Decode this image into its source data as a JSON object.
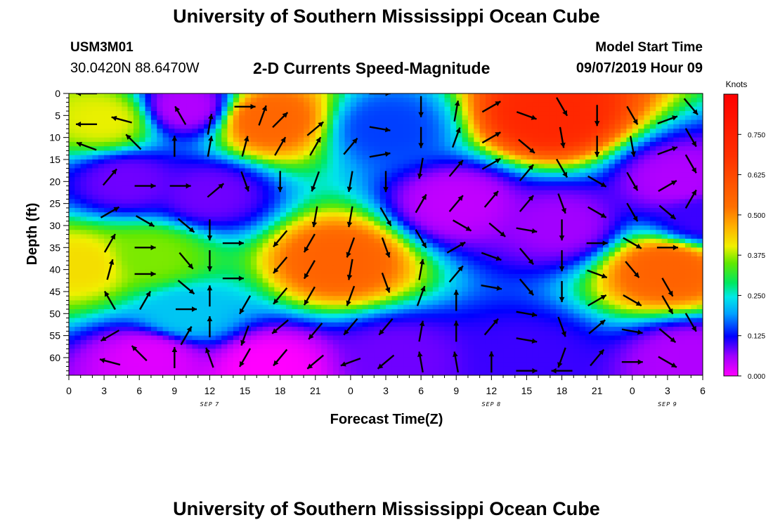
{
  "page": {
    "title_top": "University of Southern Mississippi Ocean Cube",
    "title_bottom": "University of Southern Mississippi Ocean Cube",
    "station_id": "USM3M01",
    "station_coords": "30.0420N 88.6470W",
    "plot_title": "2-D Currents Speed-Magnitude",
    "start_time_label": "Model Start Time",
    "start_time_value": "09/07/2019 Hour 09"
  },
  "chart_data": {
    "type": "heatmap",
    "title": "2-D Currents Speed-Magnitude",
    "xlabel": "Forecast Time(Z)",
    "ylabel": "Depth (ft)",
    "x_range_hours": [
      0,
      54
    ],
    "y_range_ft": [
      0,
      64
    ],
    "y_inverted": true,
    "x_tick_labels": [
      "0",
      "3",
      "6",
      "9",
      "12",
      "15",
      "18",
      "21",
      "0",
      "3",
      "6",
      "9",
      "12",
      "15",
      "18",
      "21",
      "0",
      "3",
      "6"
    ],
    "y_tick_labels": [
      "0",
      "5",
      "10",
      "15",
      "20",
      "25",
      "30",
      "35",
      "40",
      "45",
      "50",
      "55",
      "60"
    ],
    "date_labels": [
      {
        "text": "SEP 7",
        "at_hour": 12
      },
      {
        "text": "SEP 8",
        "at_hour": 36
      },
      {
        "text": "SEP 9",
        "at_hour": 51
      }
    ],
    "colorbar": {
      "unit": "Knots",
      "min": 0.0,
      "max": 0.875,
      "tick_labels": [
        "0.000",
        "0.125",
        "0.250",
        "0.375",
        "0.500",
        "0.625",
        "0.750"
      ]
    },
    "speed_centers": [
      {
        "t": 3,
        "d": 6,
        "v": 0.4
      },
      {
        "t": 1,
        "d": 39,
        "v": 0.42
      },
      {
        "t": 7,
        "d": 37,
        "v": 0.36
      },
      {
        "t": 17,
        "d": 6,
        "v": 0.55
      },
      {
        "t": 23,
        "d": 38,
        "v": 0.56
      },
      {
        "t": 17,
        "d": 62,
        "v": 0.0
      },
      {
        "t": 41,
        "d": 5,
        "v": 0.72
      },
      {
        "t": 51,
        "d": 40,
        "v": 0.56
      },
      {
        "t": 7,
        "d": 60,
        "v": 0.02
      },
      {
        "t": 12,
        "d": 23,
        "v": 0.08
      },
      {
        "t": 5,
        "d": 20,
        "v": 0.08
      },
      {
        "t": 33,
        "d": 25,
        "v": 0.04
      },
      {
        "t": 42,
        "d": 30,
        "v": 0.06
      },
      {
        "t": 54,
        "d": 28,
        "v": 0.1
      },
      {
        "t": 52,
        "d": 20,
        "v": 0.05
      },
      {
        "t": 27,
        "d": 8,
        "v": 0.15
      },
      {
        "t": 28,
        "d": 60,
        "v": 0.08
      },
      {
        "t": 39,
        "d": 60,
        "v": 0.1
      },
      {
        "t": 53,
        "d": 60,
        "v": 0.05
      },
      {
        "t": 10,
        "d": 3,
        "v": 0.05
      },
      {
        "t": 10,
        "d": 50,
        "v": 0.22
      }
    ],
    "vectors": [
      {
        "t": 1.5,
        "d": 0,
        "angle": 180
      },
      {
        "t": 1.5,
        "d": 7,
        "angle": 180
      },
      {
        "t": 1.5,
        "d": 12,
        "angle": 160
      },
      {
        "t": 4.5,
        "d": 6,
        "angle": 165
      },
      {
        "t": 5.5,
        "d": 11,
        "angle": 135
      },
      {
        "t": 3.5,
        "d": 19,
        "angle": 50
      },
      {
        "t": 3.5,
        "d": 27,
        "angle": 30
      },
      {
        "t": 3.5,
        "d": 34,
        "angle": 60
      },
      {
        "t": 3.5,
        "d": 40,
        "angle": 75
      },
      {
        "t": 3.5,
        "d": 47,
        "angle": 120
      },
      {
        "t": 3.5,
        "d": 55,
        "angle": -150
      },
      {
        "t": 3.5,
        "d": 61,
        "angle": 165
      },
      {
        "t": 6.5,
        "d": 21,
        "angle": 0
      },
      {
        "t": 6.5,
        "d": 29,
        "angle": -30
      },
      {
        "t": 6.5,
        "d": 35,
        "angle": 0
      },
      {
        "t": 6.5,
        "d": 41,
        "angle": 0
      },
      {
        "t": 6.5,
        "d": 47,
        "angle": 60
      },
      {
        "t": 6.0,
        "d": 59,
        "angle": 135
      },
      {
        "t": 9.5,
        "d": 5,
        "angle": 120
      },
      {
        "t": 9.0,
        "d": 12,
        "angle": 90
      },
      {
        "t": 9.5,
        "d": 21,
        "angle": 0
      },
      {
        "t": 10.0,
        "d": 30,
        "angle": -40
      },
      {
        "t": 10.0,
        "d": 38,
        "angle": -50
      },
      {
        "t": 10.0,
        "d": 44,
        "angle": -40
      },
      {
        "t": 10.0,
        "d": 49,
        "angle": 0
      },
      {
        "t": 10.0,
        "d": 55,
        "angle": 60
      },
      {
        "t": 9.0,
        "d": 60,
        "angle": 90
      },
      {
        "t": 12.0,
        "d": 7,
        "angle": 80
      },
      {
        "t": 12.0,
        "d": 12,
        "angle": 80
      },
      {
        "t": 12.5,
        "d": 22,
        "angle": 40
      },
      {
        "t": 12.0,
        "d": 31,
        "angle": -90
      },
      {
        "t": 12.0,
        "d": 38,
        "angle": -90
      },
      {
        "t": 12.0,
        "d": 46,
        "angle": 90
      },
      {
        "t": 12.0,
        "d": 53,
        "angle": 90
      },
      {
        "t": 12.0,
        "d": 60,
        "angle": 110
      },
      {
        "t": 15.0,
        "d": 3,
        "angle": 0
      },
      {
        "t": 15.0,
        "d": 12,
        "angle": 75
      },
      {
        "t": 15.0,
        "d": 20,
        "angle": -70
      },
      {
        "t": 14.0,
        "d": 34,
        "angle": 0
      },
      {
        "t": 14.0,
        "d": 42,
        "angle": 0
      },
      {
        "t": 15.0,
        "d": 48,
        "angle": -120
      },
      {
        "t": 15.0,
        "d": 55,
        "angle": -110
      },
      {
        "t": 15.0,
        "d": 60,
        "angle": -120
      },
      {
        "t": 16.5,
        "d": 5,
        "angle": 70
      },
      {
        "t": 18.0,
        "d": 6,
        "angle": 45
      },
      {
        "t": 18.0,
        "d": 12,
        "angle": 60
      },
      {
        "t": 18.0,
        "d": 20,
        "angle": -90
      },
      {
        "t": 18.0,
        "d": 33,
        "angle": -130
      },
      {
        "t": 18.0,
        "d": 39,
        "angle": -130
      },
      {
        "t": 18.0,
        "d": 46,
        "angle": -130
      },
      {
        "t": 18.0,
        "d": 53,
        "angle": -140
      },
      {
        "t": 18.0,
        "d": 60,
        "angle": -130
      },
      {
        "t": 21.0,
        "d": 8,
        "angle": 40
      },
      {
        "t": 21.0,
        "d": 12,
        "angle": 60
      },
      {
        "t": 21.0,
        "d": 20,
        "angle": -110
      },
      {
        "t": 21.0,
        "d": 28,
        "angle": -100
      },
      {
        "t": 20.5,
        "d": 34,
        "angle": -120
      },
      {
        "t": 20.5,
        "d": 40,
        "angle": -120
      },
      {
        "t": 20.5,
        "d": 46,
        "angle": -120
      },
      {
        "t": 21.0,
        "d": 54,
        "angle": -130
      },
      {
        "t": 21.0,
        "d": 61,
        "angle": -140
      },
      {
        "t": 24.0,
        "d": 12,
        "angle": 50
      },
      {
        "t": 24.0,
        "d": 20,
        "angle": -100
      },
      {
        "t": 24.0,
        "d": 28,
        "angle": -100
      },
      {
        "t": 24.0,
        "d": 35,
        "angle": -110
      },
      {
        "t": 24.0,
        "d": 40,
        "angle": -100
      },
      {
        "t": 24.0,
        "d": 46,
        "angle": -110
      },
      {
        "t": 24.0,
        "d": 53,
        "angle": -130
      },
      {
        "t": 24.0,
        "d": 61,
        "angle": -160
      },
      {
        "t": 26.5,
        "d": 0,
        "angle": 0
      },
      {
        "t": 26.5,
        "d": 8,
        "angle": -10
      },
      {
        "t": 26.5,
        "d": 14,
        "angle": 10
      },
      {
        "t": 27.0,
        "d": 20,
        "angle": -90
      },
      {
        "t": 27.0,
        "d": 28,
        "angle": -60
      },
      {
        "t": 27.0,
        "d": 35,
        "angle": -70
      },
      {
        "t": 27.0,
        "d": 43,
        "angle": -70
      },
      {
        "t": 27.0,
        "d": 53,
        "angle": -130
      },
      {
        "t": 27.0,
        "d": 61,
        "angle": -140
      },
      {
        "t": 30.0,
        "d": 3,
        "angle": -90
      },
      {
        "t": 30.0,
        "d": 10,
        "angle": -90
      },
      {
        "t": 30.0,
        "d": 17,
        "angle": -100
      },
      {
        "t": 30.0,
        "d": 25,
        "angle": 60
      },
      {
        "t": 30.0,
        "d": 33,
        "angle": -60
      },
      {
        "t": 30.0,
        "d": 40,
        "angle": 80
      },
      {
        "t": 30.0,
        "d": 46,
        "angle": 70
      },
      {
        "t": 30.0,
        "d": 54,
        "angle": 80
      },
      {
        "t": 30.0,
        "d": 61,
        "angle": 100
      },
      {
        "t": 33.0,
        "d": 4,
        "angle": 80
      },
      {
        "t": 33.0,
        "d": 10,
        "angle": 70
      },
      {
        "t": 33.0,
        "d": 17,
        "angle": 50
      },
      {
        "t": 33.0,
        "d": 25,
        "angle": 50
      },
      {
        "t": 33.5,
        "d": 30,
        "angle": -30
      },
      {
        "t": 33.0,
        "d": 35,
        "angle": 30
      },
      {
        "t": 33.0,
        "d": 41,
        "angle": 50
      },
      {
        "t": 33.0,
        "d": 47,
        "angle": 90
      },
      {
        "t": 33.0,
        "d": 54,
        "angle": 90
      },
      {
        "t": 33.0,
        "d": 61,
        "angle": 100
      },
      {
        "t": 36.0,
        "d": 3,
        "angle": 30
      },
      {
        "t": 36.0,
        "d": 10,
        "angle": 30
      },
      {
        "t": 36.0,
        "d": 16,
        "angle": 30
      },
      {
        "t": 36.0,
        "d": 24,
        "angle": 50
      },
      {
        "t": 36.5,
        "d": 31,
        "angle": -40
      },
      {
        "t": 36.0,
        "d": 37,
        "angle": -20
      },
      {
        "t": 36.0,
        "d": 44,
        "angle": -10
      },
      {
        "t": 36.0,
        "d": 53,
        "angle": 50
      },
      {
        "t": 36.0,
        "d": 61,
        "angle": 90
      },
      {
        "t": 39.0,
        "d": 5,
        "angle": -20
      },
      {
        "t": 39.0,
        "d": 12,
        "angle": -40
      },
      {
        "t": 39.0,
        "d": 18,
        "angle": 50
      },
      {
        "t": 39.0,
        "d": 25,
        "angle": 50
      },
      {
        "t": 39.0,
        "d": 31,
        "angle": -10
      },
      {
        "t": 39.0,
        "d": 37,
        "angle": -50
      },
      {
        "t": 39.0,
        "d": 44,
        "angle": -50
      },
      {
        "t": 39.0,
        "d": 50,
        "angle": -10
      },
      {
        "t": 39.0,
        "d": 56,
        "angle": -10
      },
      {
        "t": 39.0,
        "d": 63,
        "angle": 0
      },
      {
        "t": 42.0,
        "d": 3,
        "angle": -60
      },
      {
        "t": 42.0,
        "d": 10,
        "angle": -80
      },
      {
        "t": 42.0,
        "d": 17,
        "angle": -60
      },
      {
        "t": 42.0,
        "d": 25,
        "angle": -70
      },
      {
        "t": 42.0,
        "d": 31,
        "angle": -90
      },
      {
        "t": 42.0,
        "d": 38,
        "angle": -90
      },
      {
        "t": 42.0,
        "d": 45,
        "angle": -90
      },
      {
        "t": 42.0,
        "d": 53,
        "angle": -70
      },
      {
        "t": 42.0,
        "d": 60,
        "angle": -110
      },
      {
        "t": 42.0,
        "d": 63,
        "angle": 180
      },
      {
        "t": 45.0,
        "d": 5,
        "angle": -90
      },
      {
        "t": 45.0,
        "d": 12,
        "angle": -90
      },
      {
        "t": 45.0,
        "d": 20,
        "angle": -30
      },
      {
        "t": 45.0,
        "d": 27,
        "angle": -30
      },
      {
        "t": 45.0,
        "d": 34,
        "angle": 0
      },
      {
        "t": 45.0,
        "d": 41,
        "angle": -20
      },
      {
        "t": 45.0,
        "d": 47,
        "angle": 30
      },
      {
        "t": 45.0,
        "d": 53,
        "angle": 40
      },
      {
        "t": 45.0,
        "d": 60,
        "angle": 50
      },
      {
        "t": 48.0,
        "d": 5,
        "angle": -60
      },
      {
        "t": 48.0,
        "d": 12,
        "angle": -80
      },
      {
        "t": 48.0,
        "d": 20,
        "angle": -60
      },
      {
        "t": 48.0,
        "d": 27,
        "angle": -60
      },
      {
        "t": 48.0,
        "d": 34,
        "angle": -30
      },
      {
        "t": 48.0,
        "d": 40,
        "angle": -50
      },
      {
        "t": 48.0,
        "d": 47,
        "angle": -30
      },
      {
        "t": 48.0,
        "d": 54,
        "angle": -10
      },
      {
        "t": 48.0,
        "d": 61,
        "angle": 0
      },
      {
        "t": 51.0,
        "d": 6,
        "angle": 20
      },
      {
        "t": 51.0,
        "d": 13,
        "angle": 20
      },
      {
        "t": 51.0,
        "d": 21,
        "angle": 30
      },
      {
        "t": 51.0,
        "d": 27,
        "angle": -40
      },
      {
        "t": 51.0,
        "d": 35,
        "angle": 0
      },
      {
        "t": 51.0,
        "d": 44,
        "angle": -60
      },
      {
        "t": 51.0,
        "d": 48,
        "angle": -60
      },
      {
        "t": 51.0,
        "d": 55,
        "angle": -40
      },
      {
        "t": 51.0,
        "d": 61,
        "angle": -30
      },
      {
        "t": 53.0,
        "d": 3,
        "angle": -50
      },
      {
        "t": 53.0,
        "d": 10,
        "angle": -60
      },
      {
        "t": 53.0,
        "d": 16,
        "angle": -60
      },
      {
        "t": 53.0,
        "d": 24,
        "angle": 60
      },
      {
        "t": 53.0,
        "d": 52,
        "angle": -60
      }
    ]
  }
}
